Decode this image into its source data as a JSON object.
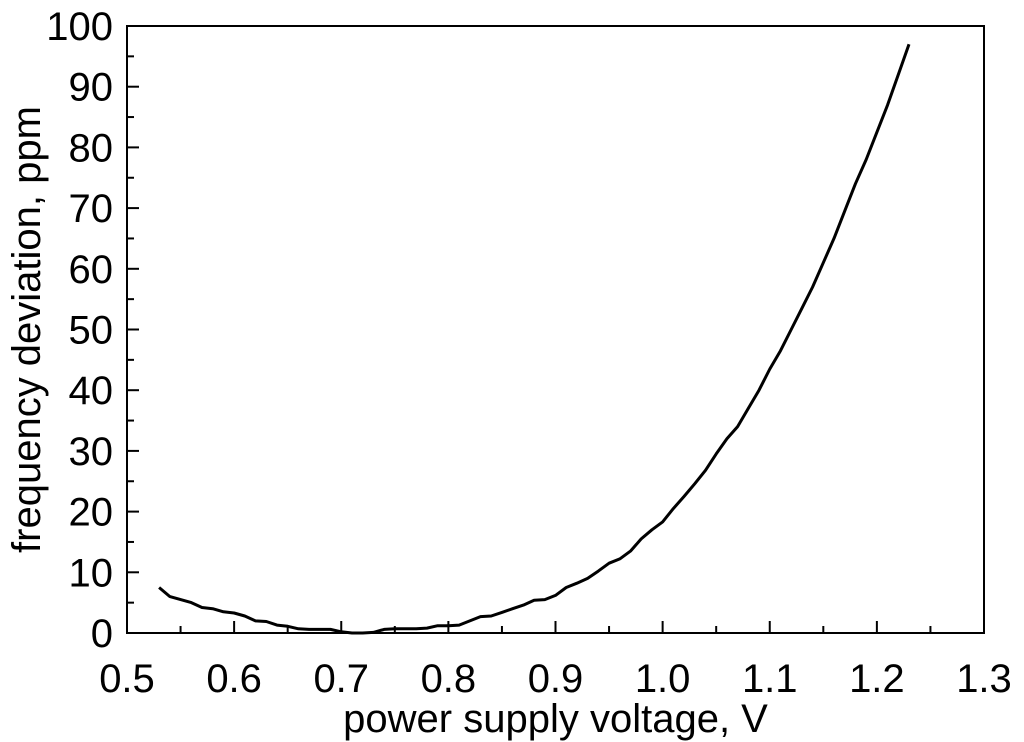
{
  "chart_data": {
    "type": "line",
    "xlabel": "power supply voltage, V",
    "ylabel": "frequency deviation, ppm",
    "xlim": [
      0.5,
      1.3
    ],
    "ylim": [
      0,
      100
    ],
    "x_ticks": [
      0.5,
      0.6,
      0.7,
      0.8,
      0.9,
      1.0,
      1.1,
      1.2,
      1.3
    ],
    "x_tick_labels": [
      "0.5",
      "0.6",
      "0.7",
      "0.8",
      "0.9",
      "1.0",
      "1.1",
      "1.2",
      "1.3"
    ],
    "y_ticks": [
      0,
      10,
      20,
      30,
      40,
      50,
      60,
      70,
      80,
      90,
      100
    ],
    "y_tick_labels": [
      "0",
      "10",
      "20",
      "30",
      "40",
      "50",
      "60",
      "70",
      "80",
      "90",
      "100"
    ],
    "grid": false,
    "line_color": "#000000",
    "series": [
      {
        "x": [
          0.53,
          0.54,
          0.56,
          0.57,
          0.58,
          0.59,
          0.6,
          0.61,
          0.62,
          0.63,
          0.64,
          0.65,
          0.66,
          0.67,
          0.68,
          0.69,
          0.7,
          0.71,
          0.72,
          0.73,
          0.74,
          0.75,
          0.76,
          0.77,
          0.78,
          0.79,
          0.8,
          0.81,
          0.82,
          0.83,
          0.84,
          0.85,
          0.86,
          0.87,
          0.88,
          0.89,
          0.9,
          0.91,
          0.92,
          0.93,
          0.94,
          0.95,
          0.96,
          0.97,
          0.98,
          0.99,
          1.0,
          1.01,
          1.02,
          1.03,
          1.04,
          1.05,
          1.06,
          1.07,
          1.08,
          1.09,
          1.1,
          1.11,
          1.12,
          1.13,
          1.14,
          1.15,
          1.16,
          1.17,
          1.18,
          1.19,
          1.2,
          1.21,
          1.22,
          1.23
        ],
        "y": [
          7.5,
          6.0,
          5.0,
          4.2,
          4.0,
          3.5,
          3.3,
          2.8,
          2.0,
          1.9,
          1.3,
          1.1,
          0.7,
          0.6,
          0.6,
          0.6,
          0.2,
          0.0,
          0.0,
          0.1,
          0.6,
          0.7,
          0.7,
          0.7,
          0.8,
          1.2,
          1.2,
          1.3,
          2.0,
          2.7,
          2.8,
          3.4,
          4.0,
          4.6,
          5.4,
          5.5,
          6.2,
          7.5,
          8.2,
          9.0,
          10.2,
          11.5,
          12.2,
          13.5,
          15.5,
          17.0,
          18.3,
          20.5,
          22.5,
          24.6,
          26.8,
          29.5,
          32.0,
          34.0,
          37.0,
          40.0,
          43.5,
          46.5,
          50.0,
          53.5,
          57.0,
          61.0,
          65.0,
          69.5,
          74.0,
          78.0,
          82.5,
          87.0,
          92.0,
          97.0
        ]
      }
    ]
  }
}
